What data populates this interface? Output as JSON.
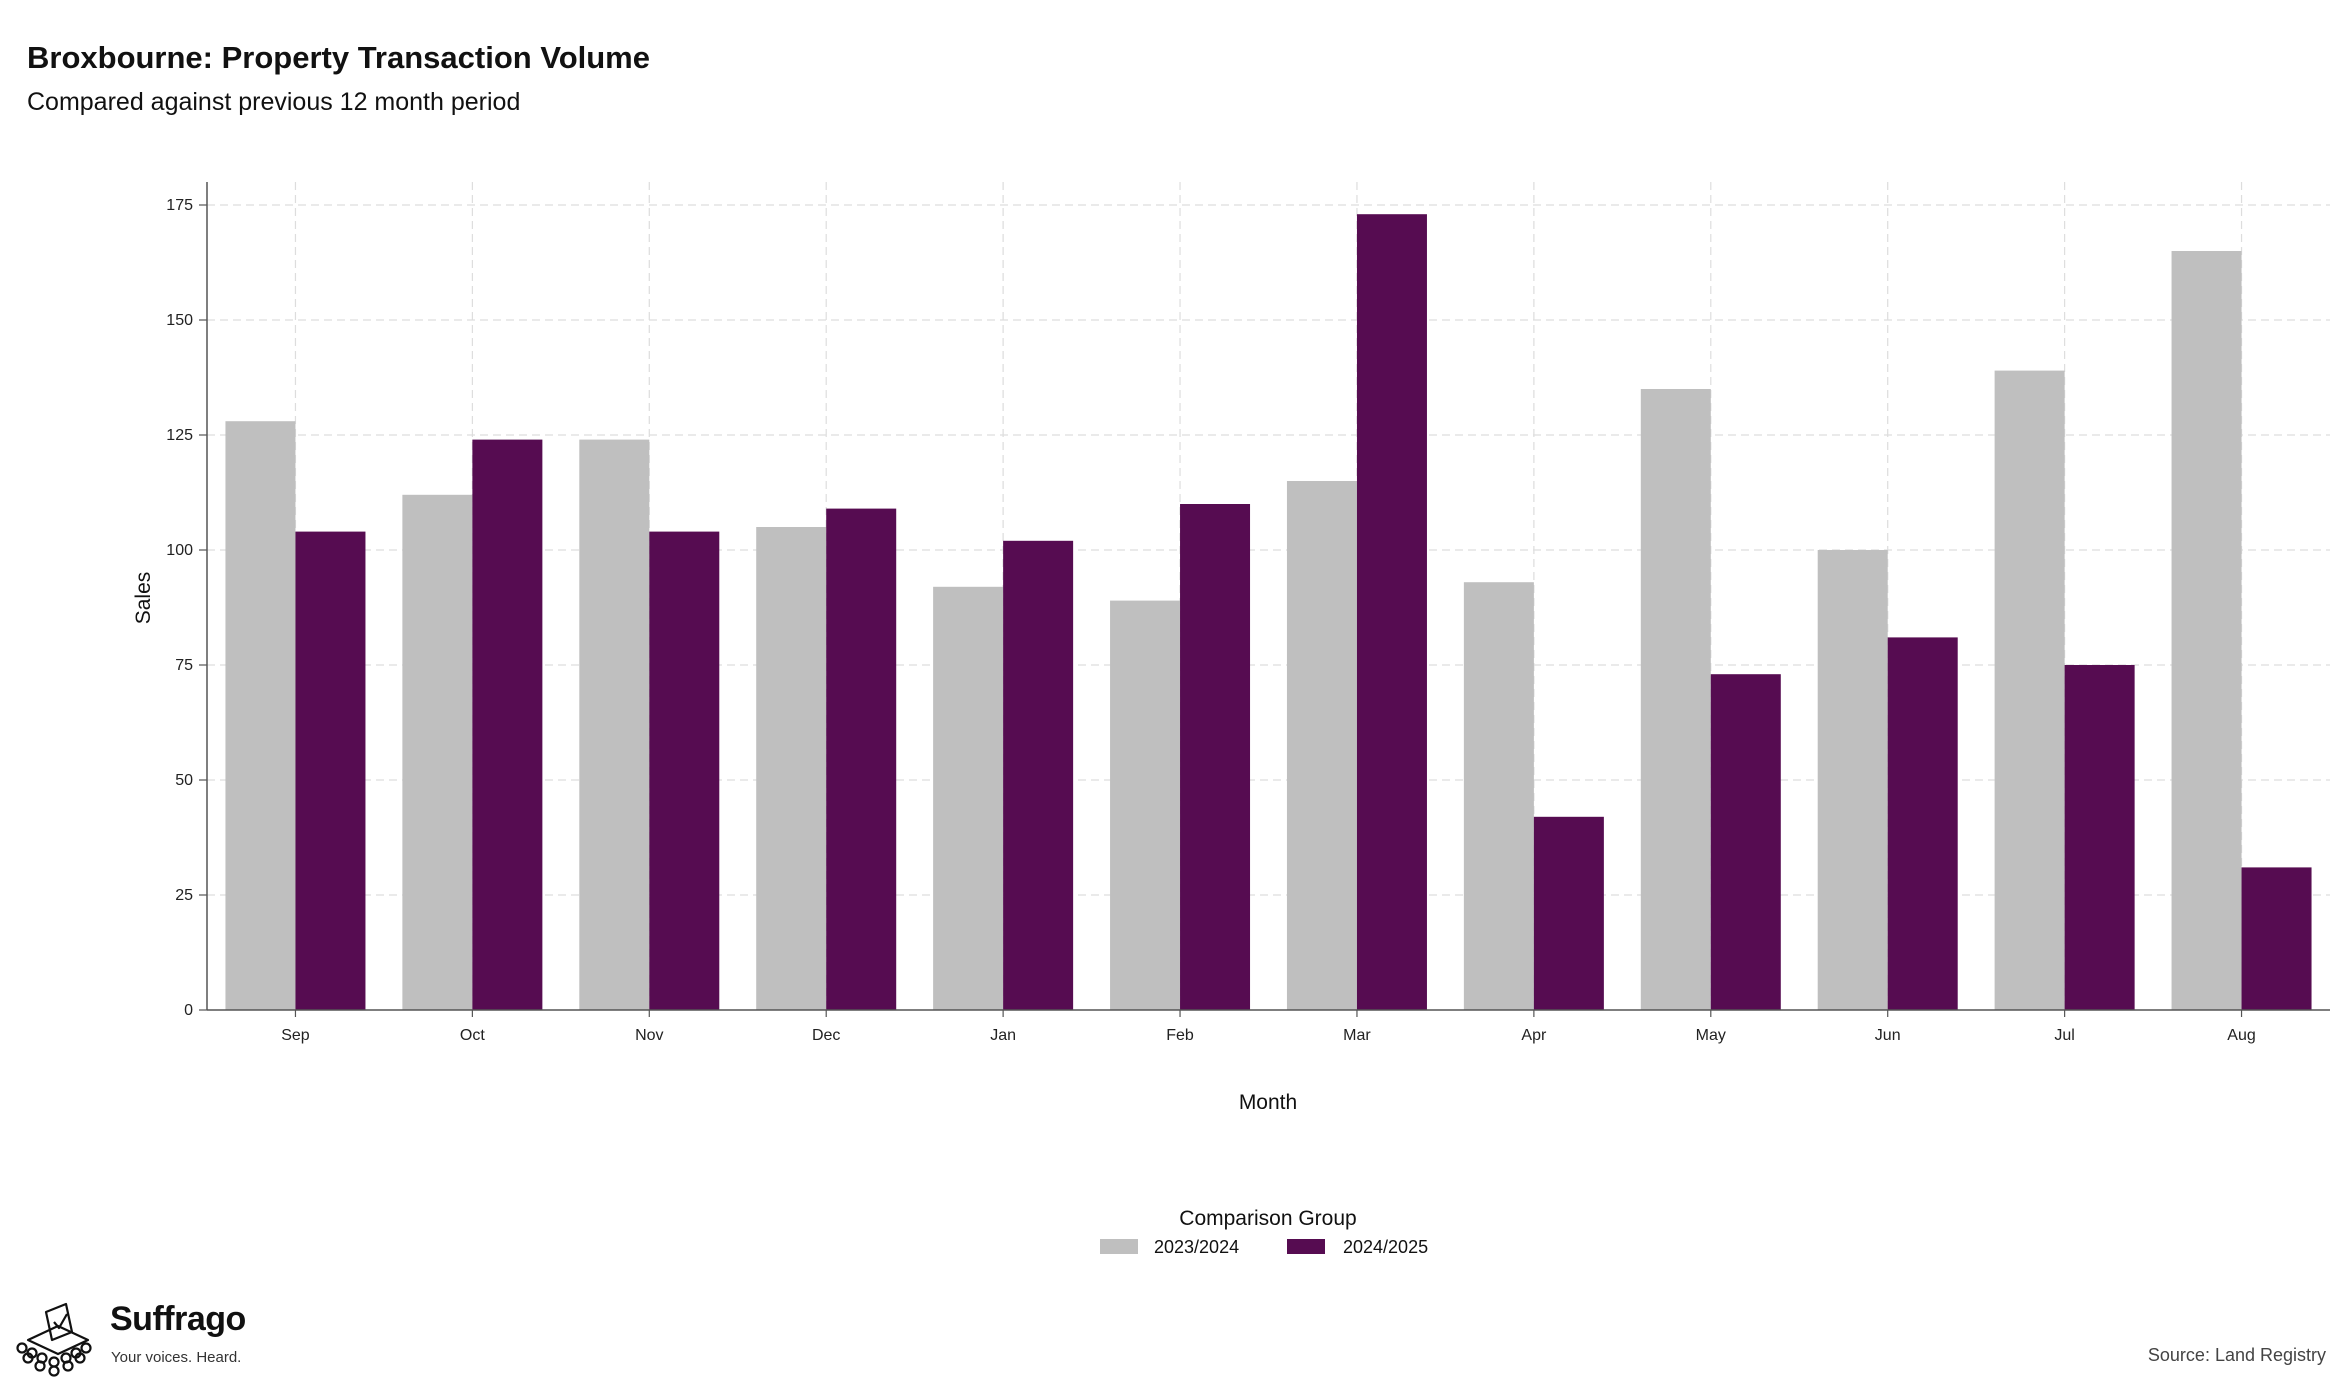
{
  "title": "Broxbourne: Property Transaction Volume",
  "subtitle": "Compared against previous 12 month period",
  "source": "Source: Land Registry",
  "brand": {
    "name": "Suffrago",
    "tagline": "Your voices. Heard.",
    "logo_icon": "ballot-box-icon"
  },
  "colors": {
    "series_2023": "#bfbfbf",
    "series_2024": "#560c51",
    "grid": "#dddddd",
    "axis": "#555555"
  },
  "chart_data": {
    "type": "bar",
    "title": "Broxbourne: Property Transaction Volume",
    "subtitle": "Compared against previous 12 month period",
    "xlabel": "Month",
    "ylabel": "Sales",
    "categories": [
      "Sep",
      "Oct",
      "Nov",
      "Dec",
      "Jan",
      "Feb",
      "Mar",
      "Apr",
      "May",
      "Jun",
      "Jul",
      "Aug"
    ],
    "ylim": [
      0,
      180
    ],
    "yticks": [
      0,
      25,
      50,
      75,
      100,
      125,
      150,
      175
    ],
    "grid": true,
    "legend": {
      "title": "Comparison Group",
      "position": "bottom"
    },
    "series": [
      {
        "name": "2023/2024",
        "color": "#bfbfbf",
        "values": [
          128,
          112,
          124,
          105,
          92,
          89,
          115,
          93,
          135,
          100,
          139,
          165
        ]
      },
      {
        "name": "2024/2025",
        "color": "#560c51",
        "values": [
          104,
          124,
          104,
          109,
          102,
          110,
          173,
          42,
          73,
          81,
          75,
          31
        ]
      }
    ]
  }
}
